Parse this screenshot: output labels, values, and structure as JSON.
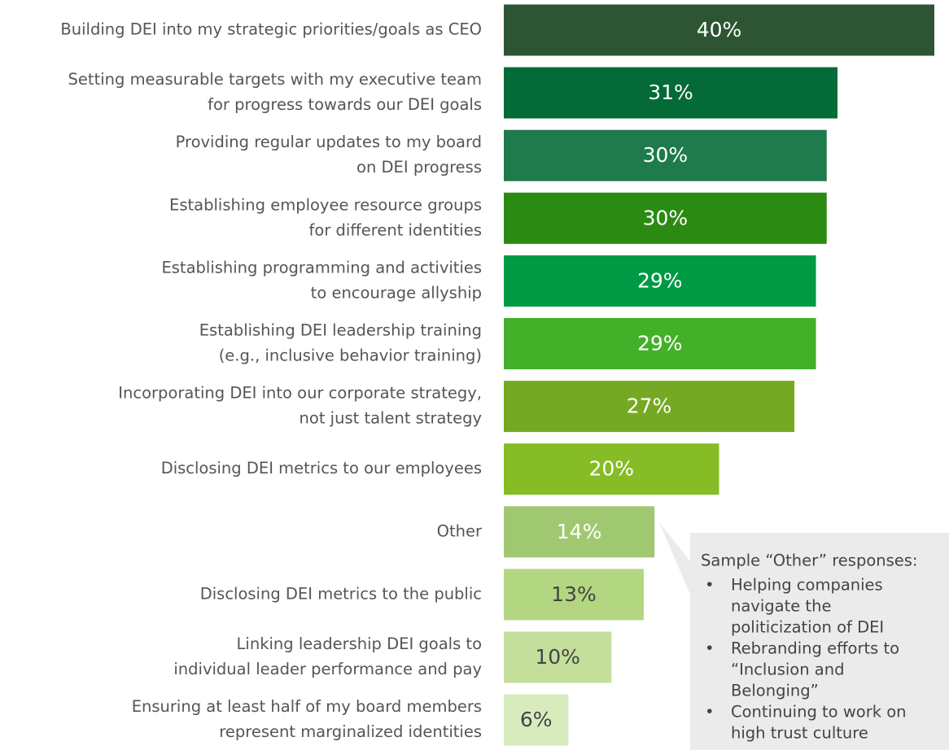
{
  "chart_data": {
    "type": "bar",
    "orientation": "horizontal",
    "categories": [
      [
        "Building DEI into my strategic priorities/goals as CEO"
      ],
      [
        "Setting measurable targets with my executive team",
        "for progress towards our DEI goals"
      ],
      [
        "Providing regular updates to my board",
        "on DEI progress"
      ],
      [
        "Establishing employee resource groups",
        "for different identities"
      ],
      [
        "Establishing programming and activities",
        "to encourage allyship"
      ],
      [
        "Establishing DEI leadership training",
        "(e.g., inclusive behavior training)"
      ],
      [
        "Incorporating DEI into our corporate strategy,",
        "not just talent strategy"
      ],
      [
        "Disclosing DEI metrics to our employees"
      ],
      [
        "Other"
      ],
      [
        "Disclosing DEI metrics to the public"
      ],
      [
        "Linking leadership DEI goals to",
        "individual leader performance and pay"
      ],
      [
        "Ensuring at least half of my board members",
        "represent marginalized identities"
      ]
    ],
    "values": [
      40,
      31,
      30,
      30,
      29,
      29,
      27,
      20,
      14,
      13,
      10,
      6
    ],
    "value_labels": [
      "40%",
      "31%",
      "30%",
      "30%",
      "29%",
      "29%",
      "27%",
      "20%",
      "14%",
      "13%",
      "10%",
      "6%"
    ],
    "colors": [
      "#2d5534",
      "#046a38",
      "#1f7a4c",
      "#2b8a12",
      "#009a44",
      "#43b02a",
      "#76a923",
      "#86bc25",
      "#a0c870",
      "#b3d680",
      "#c4df9b",
      "#d8ebbd"
    ],
    "value_label_colors": [
      "#ffffff",
      "#ffffff",
      "#ffffff",
      "#ffffff",
      "#ffffff",
      "#ffffff",
      "#ffffff",
      "#ffffff",
      "#ffffff",
      "#444444",
      "#444444",
      "#444444"
    ],
    "xlim": [
      0,
      40
    ],
    "annotation": {
      "title": "Sample “Other” responses:",
      "items": [
        [
          "Helping companies",
          "navigate the",
          "politicization of DEI"
        ],
        [
          "Rebranding efforts to",
          "“Inclusion and",
          "Belonging”"
        ],
        [
          "Continuing to work on",
          "high trust culture"
        ]
      ],
      "bullet": "•"
    }
  }
}
